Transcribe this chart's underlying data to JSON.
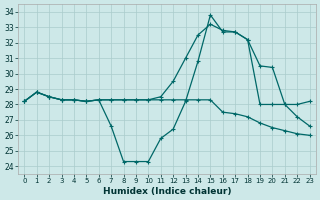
{
  "xlabel": "Humidex (Indice chaleur)",
  "bg_color": "#cde8e8",
  "grid_color": "#aacccc",
  "line_color": "#006868",
  "xlim": [
    -0.5,
    23.5
  ],
  "ylim": [
    23.5,
    34.5
  ],
  "yticks": [
    24,
    25,
    26,
    27,
    28,
    29,
    30,
    31,
    32,
    33,
    34
  ],
  "xticks": [
    0,
    1,
    2,
    3,
    4,
    5,
    6,
    7,
    8,
    9,
    10,
    11,
    12,
    13,
    14,
    15,
    16,
    17,
    18,
    19,
    20,
    21,
    22,
    23
  ],
  "line1_x": [
    0,
    1,
    2,
    3,
    4,
    5,
    6,
    7,
    8,
    9,
    10,
    11,
    12,
    13,
    14,
    15,
    16,
    17,
    18,
    19,
    20,
    21,
    22,
    23
  ],
  "line1_y": [
    28.2,
    28.8,
    28.5,
    28.3,
    28.3,
    28.2,
    28.3,
    26.6,
    24.3,
    24.3,
    24.3,
    25.8,
    26.4,
    28.2,
    30.8,
    33.8,
    32.7,
    32.7,
    32.2,
    28.0,
    28.0,
    28.0,
    28.0,
    28.2
  ],
  "line2_x": [
    0,
    1,
    2,
    3,
    4,
    5,
    6,
    7,
    8,
    9,
    10,
    11,
    12,
    13,
    14,
    15,
    16,
    17,
    18,
    19,
    20,
    21,
    22,
    23
  ],
  "line2_y": [
    28.2,
    28.8,
    28.5,
    28.3,
    28.3,
    28.2,
    28.3,
    28.3,
    28.3,
    28.3,
    28.3,
    28.5,
    29.5,
    31.0,
    32.5,
    33.2,
    32.8,
    32.7,
    32.2,
    30.5,
    30.4,
    28.0,
    27.2,
    26.6
  ],
  "line3_x": [
    0,
    1,
    2,
    3,
    4,
    5,
    6,
    7,
    8,
    9,
    10,
    11,
    12,
    13,
    14,
    15,
    16,
    17,
    18,
    19,
    20,
    21,
    22,
    23
  ],
  "line3_y": [
    28.2,
    28.8,
    28.5,
    28.3,
    28.3,
    28.2,
    28.3,
    28.3,
    28.3,
    28.3,
    28.3,
    28.3,
    28.3,
    28.3,
    28.3,
    28.3,
    27.5,
    27.4,
    27.2,
    26.8,
    26.5,
    26.3,
    26.1,
    26.0
  ]
}
